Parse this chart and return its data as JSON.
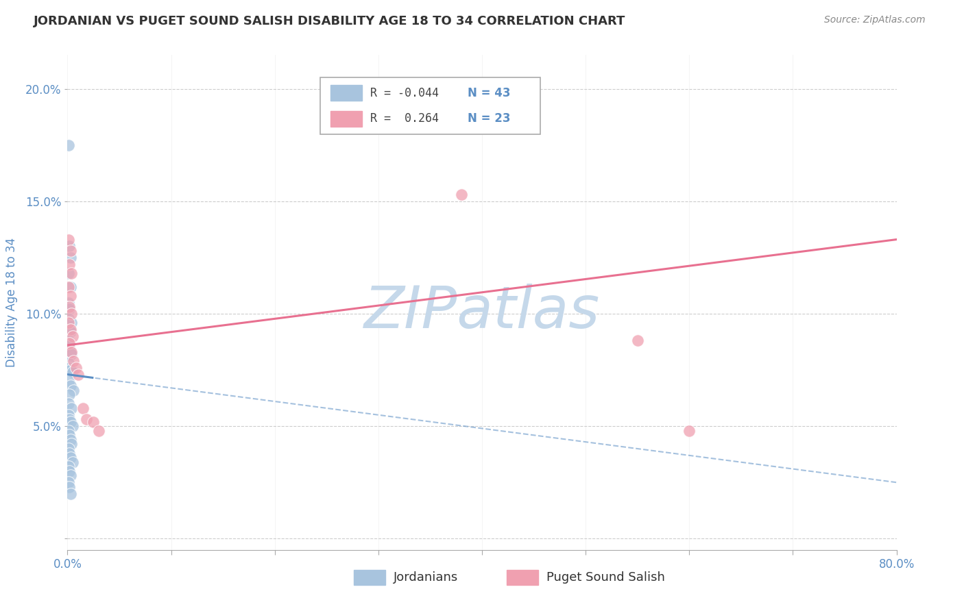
{
  "title": "JORDANIAN VS PUGET SOUND SALISH DISABILITY AGE 18 TO 34 CORRELATION CHART",
  "source": "Source: ZipAtlas.com",
  "ylabel": "Disability Age 18 to 34",
  "xlim": [
    0.0,
    0.8
  ],
  "ylim": [
    -0.005,
    0.215
  ],
  "yticks": [
    0.0,
    0.05,
    0.1,
    0.15,
    0.2
  ],
  "ytick_labels": [
    "",
    "5.0%",
    "10.0%",
    "15.0%",
    "20.0%"
  ],
  "xticks": [
    0.0,
    0.1,
    0.2,
    0.3,
    0.4,
    0.5,
    0.6,
    0.7,
    0.8
  ],
  "xtick_labels": [
    "0.0%",
    "",
    "",
    "",
    "",
    "",
    "",
    "",
    "80.0%"
  ],
  "r_jordanian": -0.044,
  "n_jordanian": 43,
  "r_puget": 0.264,
  "n_puget": 23,
  "background_color": "#ffffff",
  "grid_color": "#cccccc",
  "watermark": "ZIPatlas",
  "watermark_color": "#c5d8ea",
  "jordanian_color": "#a8c4de",
  "puget_color": "#f0a0b0",
  "jordanian_line_color": "#5b8ec4",
  "puget_line_color": "#e87090",
  "title_color": "#333333",
  "axis_color": "#5b8ec4",
  "jordanian_points": [
    [
      0.001,
      0.175
    ],
    [
      0.002,
      0.13
    ],
    [
      0.003,
      0.125
    ],
    [
      0.001,
      0.118
    ],
    [
      0.003,
      0.112
    ],
    [
      0.001,
      0.105
    ],
    [
      0.002,
      0.102
    ],
    [
      0.001,
      0.098
    ],
    [
      0.004,
      0.096
    ],
    [
      0.002,
      0.093
    ],
    [
      0.003,
      0.092
    ],
    [
      0.001,
      0.088
    ],
    [
      0.002,
      0.086
    ],
    [
      0.003,
      0.083
    ],
    [
      0.004,
      0.082
    ],
    [
      0.001,
      0.078
    ],
    [
      0.002,
      0.076
    ],
    [
      0.003,
      0.075
    ],
    [
      0.005,
      0.074
    ],
    [
      0.001,
      0.07
    ],
    [
      0.003,
      0.068
    ],
    [
      0.006,
      0.066
    ],
    [
      0.002,
      0.064
    ],
    [
      0.001,
      0.06
    ],
    [
      0.004,
      0.058
    ],
    [
      0.001,
      0.055
    ],
    [
      0.002,
      0.053
    ],
    [
      0.003,
      0.052
    ],
    [
      0.005,
      0.05
    ],
    [
      0.001,
      0.048
    ],
    [
      0.002,
      0.046
    ],
    [
      0.003,
      0.044
    ],
    [
      0.004,
      0.042
    ],
    [
      0.001,
      0.04
    ],
    [
      0.002,
      0.038
    ],
    [
      0.003,
      0.036
    ],
    [
      0.005,
      0.034
    ],
    [
      0.001,
      0.032
    ],
    [
      0.002,
      0.03
    ],
    [
      0.003,
      0.028
    ],
    [
      0.001,
      0.025
    ],
    [
      0.002,
      0.023
    ],
    [
      0.003,
      0.02
    ]
  ],
  "puget_points": [
    [
      0.001,
      0.133
    ],
    [
      0.003,
      0.128
    ],
    [
      0.002,
      0.122
    ],
    [
      0.004,
      0.118
    ],
    [
      0.001,
      0.112
    ],
    [
      0.003,
      0.108
    ],
    [
      0.002,
      0.103
    ],
    [
      0.004,
      0.1
    ],
    [
      0.001,
      0.096
    ],
    [
      0.003,
      0.093
    ],
    [
      0.005,
      0.09
    ],
    [
      0.002,
      0.087
    ],
    [
      0.004,
      0.083
    ],
    [
      0.006,
      0.079
    ],
    [
      0.008,
      0.076
    ],
    [
      0.01,
      0.073
    ],
    [
      0.015,
      0.058
    ],
    [
      0.018,
      0.053
    ],
    [
      0.025,
      0.052
    ],
    [
      0.03,
      0.048
    ],
    [
      0.38,
      0.153
    ],
    [
      0.55,
      0.088
    ],
    [
      0.6,
      0.048
    ]
  ],
  "jline_x0": 0.0,
  "jline_y0": 0.073,
  "jline_x1": 0.8,
  "jline_y1": 0.025,
  "jline_solid_end": 0.025,
  "pline_x0": 0.0,
  "pline_y0": 0.086,
  "pline_x1": 0.8,
  "pline_y1": 0.133
}
